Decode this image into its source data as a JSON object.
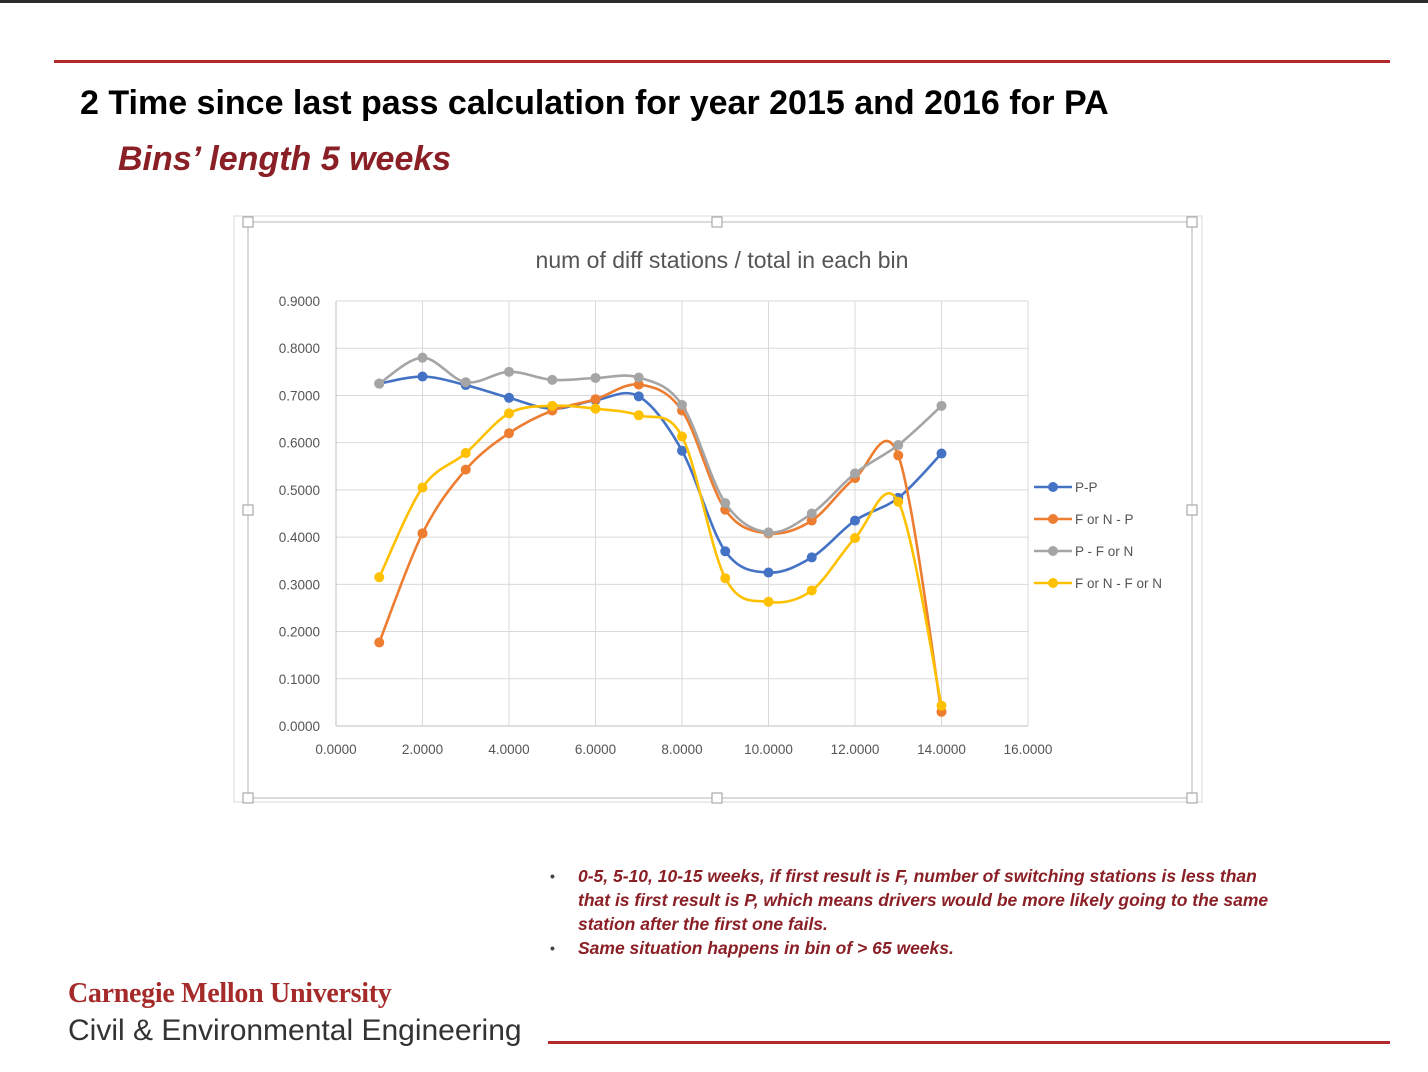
{
  "slide": {
    "title": "2 Time since last pass calculation for year 2015 and 2016 for PA",
    "subtitle": "Bins’ length 5 weeks",
    "bullets": [
      "0-5, 5-10, 10-15 weeks, if first result is F, number of switching stations is less than that is first result is P, which means drivers would be more likely going to the same station after the first one fails.",
      "Same situation happens in bin of > 65 weeks."
    ],
    "footer": {
      "university": "Carnegie Mellon University",
      "department": "Civil & Environmental Engineering"
    },
    "colors": {
      "accent": "#b22a2a",
      "subtitle": "#8a1f26"
    }
  },
  "chart_data": {
    "type": "line",
    "title": "num of diff stations / total in each bin",
    "xlabel": "",
    "ylabel": "",
    "xlim": [
      0,
      16
    ],
    "ylim": [
      0,
      0.9
    ],
    "x_ticks": [
      "0.0000",
      "2.0000",
      "4.0000",
      "6.0000",
      "8.0000",
      "10.0000",
      "12.0000",
      "14.0000",
      "16.0000"
    ],
    "y_ticks": [
      "0.0000",
      "0.1000",
      "0.2000",
      "0.3000",
      "0.4000",
      "0.5000",
      "0.6000",
      "0.7000",
      "0.8000",
      "0.9000"
    ],
    "grid": true,
    "smooth": true,
    "legend_position": "right",
    "x": [
      1,
      2,
      3,
      4,
      5,
      6,
      7,
      8,
      9,
      10,
      11,
      12,
      13,
      14
    ],
    "series": [
      {
        "name": "P-P",
        "color": "#4472c4",
        "values": [
          0.725,
          0.74,
          0.722,
          0.695,
          0.672,
          0.69,
          0.698,
          0.583,
          0.37,
          0.325,
          0.357,
          0.435,
          0.483,
          0.577
        ]
      },
      {
        "name": "F or N - P",
        "color": "#ed7d31",
        "values": [
          0.177,
          0.408,
          0.543,
          0.62,
          0.668,
          0.692,
          0.723,
          0.668,
          0.458,
          0.408,
          0.435,
          0.525,
          0.573,
          0.03
        ]
      },
      {
        "name": "P - F or N",
        "color": "#a5a5a5",
        "values": [
          0.725,
          0.78,
          0.728,
          0.75,
          0.733,
          0.737,
          0.738,
          0.68,
          0.472,
          0.41,
          0.45,
          0.535,
          0.595,
          0.678
        ]
      },
      {
        "name": "F or N - F or N",
        "color": "#ffc000",
        "values": [
          0.315,
          0.505,
          0.578,
          0.662,
          0.678,
          0.672,
          0.658,
          0.613,
          0.313,
          0.263,
          0.287,
          0.398,
          0.475,
          0.043
        ]
      }
    ]
  }
}
